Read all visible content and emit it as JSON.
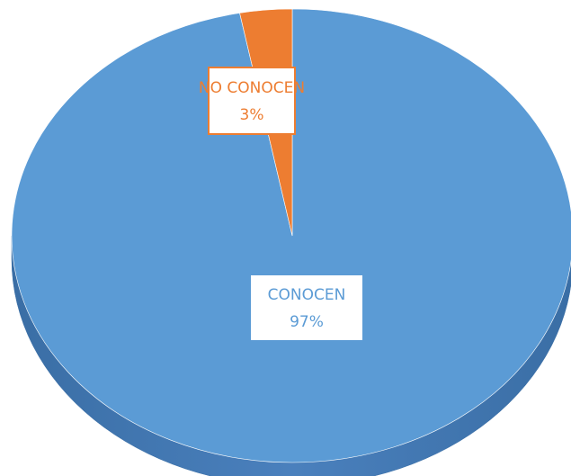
{
  "chart_data": {
    "type": "pie",
    "categories": [
      "CONOCEN",
      "NO CONOCEN"
    ],
    "values": [
      97,
      3
    ],
    "value_labels": [
      "97%",
      "3%"
    ],
    "colors": [
      "#5b9bd5",
      "#ed7d31"
    ]
  }
}
